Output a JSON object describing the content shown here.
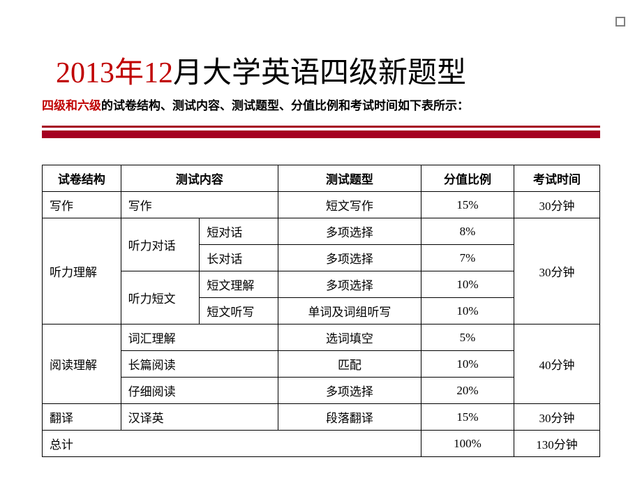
{
  "colors": {
    "accent_red": "#c00000",
    "bar_red": "#a50021",
    "text_black": "#000000",
    "corner_gray": "#808080",
    "background": "#ffffff"
  },
  "title": {
    "year_part": "2013年12",
    "rest_part": "月大学英语四级新题型"
  },
  "subtitle": {
    "highlight": "四级和六级",
    "rest": "的试卷结构、测试内容、测试题型、分值比例和考试时间如下表所示："
  },
  "headers": {
    "structure": "试卷结构",
    "content": "测试内容",
    "type": "测试题型",
    "percent": "分值比例",
    "time": "考试时间"
  },
  "rows": {
    "writing": {
      "struct": "写作",
      "content": "写作",
      "type": "短文写作",
      "percent": "15%",
      "time": "30分钟"
    },
    "listening": {
      "struct": "听力理解",
      "groups": {
        "dialog": {
          "label": "听力对话",
          "r1": {
            "sub": "短对话",
            "type": "多项选择",
            "percent": "8%"
          },
          "r2": {
            "sub": "长对话",
            "type": "多项选择",
            "percent": "7%"
          }
        },
        "passage": {
          "label": "听力短文",
          "r1": {
            "sub": "短文理解",
            "type": "多项选择",
            "percent": "10%"
          },
          "r2": {
            "sub": "短文听写",
            "type": "单词及词组听写",
            "percent": "10%"
          }
        }
      },
      "time": "30分钟"
    },
    "reading": {
      "struct": "阅读理解",
      "r1": {
        "content": "词汇理解",
        "type": "选词填空",
        "percent": "5%"
      },
      "r2": {
        "content": "长篇阅读",
        "type": "匹配",
        "percent": "10%"
      },
      "r3": {
        "content": "仔细阅读",
        "type": "多项选择",
        "percent": "20%"
      },
      "time": "40分钟"
    },
    "translation": {
      "struct": "翻译",
      "content": "汉译英",
      "type": "段落翻译",
      "percent": "15%",
      "time": "30分钟"
    },
    "total": {
      "struct": "总计",
      "percent": "100%",
      "time": "130分钟"
    }
  }
}
